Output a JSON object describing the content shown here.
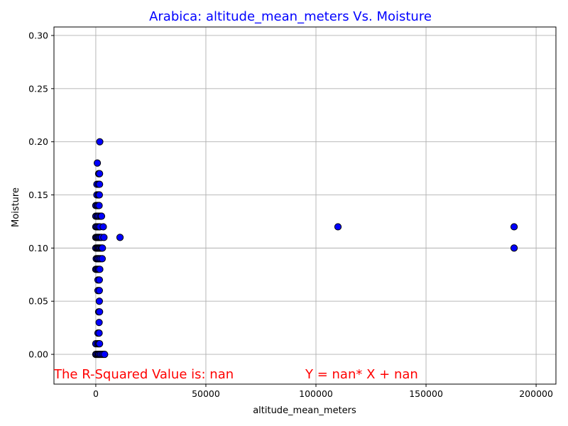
{
  "chart_data": {
    "type": "scatter",
    "title": "Arabica: altitude_mean_meters Vs. Moisture",
    "title_color": "#0000ff",
    "xlabel": "altitude_mean_meters",
    "ylabel": "Moisture",
    "xlim": [
      -19000,
      209000
    ],
    "ylim": [
      -0.028,
      0.308
    ],
    "xticks": [
      0,
      50000,
      100000,
      150000,
      200000
    ],
    "xtick_labels": [
      "0",
      "50000",
      "100000",
      "150000",
      "200000"
    ],
    "yticks": [
      0.0,
      0.05,
      0.1,
      0.15,
      0.2,
      0.25,
      0.3
    ],
    "ytick_labels": [
      "0.00",
      "0.05",
      "0.10",
      "0.15",
      "0.20",
      "0.25",
      "0.30"
    ],
    "grid": true,
    "marker_color": "#0000ff",
    "marker_edge_color": "#000000",
    "points": [
      {
        "x": 0,
        "y": 0.0
      },
      {
        "x": 400,
        "y": 0.0
      },
      {
        "x": 900,
        "y": 0.0
      },
      {
        "x": 1300,
        "y": 0.0
      },
      {
        "x": 1700,
        "y": 0.0
      },
      {
        "x": 2200,
        "y": 0.0
      },
      {
        "x": 2800,
        "y": 0.0
      },
      {
        "x": 3400,
        "y": 0.0
      },
      {
        "x": 4000,
        "y": 0.0
      },
      {
        "x": 0,
        "y": 0.01
      },
      {
        "x": 800,
        "y": 0.01
      },
      {
        "x": 1300,
        "y": 0.01
      },
      {
        "x": 1700,
        "y": 0.01
      },
      {
        "x": 1000,
        "y": 0.02
      },
      {
        "x": 1500,
        "y": 0.02
      },
      {
        "x": 1500,
        "y": 0.03
      },
      {
        "x": 1300,
        "y": 0.04
      },
      {
        "x": 1700,
        "y": 0.04
      },
      {
        "x": 1600,
        "y": 0.05
      },
      {
        "x": 1000,
        "y": 0.06
      },
      {
        "x": 1600,
        "y": 0.06
      },
      {
        "x": 1000,
        "y": 0.07
      },
      {
        "x": 1600,
        "y": 0.07
      },
      {
        "x": 0,
        "y": 0.08
      },
      {
        "x": 400,
        "y": 0.08
      },
      {
        "x": 900,
        "y": 0.08
      },
      {
        "x": 1300,
        "y": 0.08
      },
      {
        "x": 1800,
        "y": 0.08
      },
      {
        "x": 200,
        "y": 0.09
      },
      {
        "x": 700,
        "y": 0.09
      },
      {
        "x": 1100,
        "y": 0.09
      },
      {
        "x": 1600,
        "y": 0.09
      },
      {
        "x": 2200,
        "y": 0.09
      },
      {
        "x": 2900,
        "y": 0.09
      },
      {
        "x": 0,
        "y": 0.1
      },
      {
        "x": 500,
        "y": 0.1
      },
      {
        "x": 900,
        "y": 0.1
      },
      {
        "x": 1300,
        "y": 0.1
      },
      {
        "x": 1700,
        "y": 0.1
      },
      {
        "x": 2100,
        "y": 0.1
      },
      {
        "x": 2600,
        "y": 0.1
      },
      {
        "x": 3000,
        "y": 0.1
      },
      {
        "x": 0,
        "y": 0.11
      },
      {
        "x": 400,
        "y": 0.11
      },
      {
        "x": 800,
        "y": 0.11
      },
      {
        "x": 1200,
        "y": 0.11
      },
      {
        "x": 1600,
        "y": 0.11
      },
      {
        "x": 2100,
        "y": 0.11
      },
      {
        "x": 2600,
        "y": 0.11
      },
      {
        "x": 3700,
        "y": 0.11
      },
      {
        "x": 11000,
        "y": 0.11
      },
      {
        "x": 0,
        "y": 0.12
      },
      {
        "x": 400,
        "y": 0.12
      },
      {
        "x": 900,
        "y": 0.12
      },
      {
        "x": 1400,
        "y": 0.12
      },
      {
        "x": 1900,
        "y": 0.12
      },
      {
        "x": 3400,
        "y": 0.12
      },
      {
        "x": 0,
        "y": 0.13
      },
      {
        "x": 500,
        "y": 0.13
      },
      {
        "x": 1000,
        "y": 0.13
      },
      {
        "x": 1500,
        "y": 0.13
      },
      {
        "x": 2200,
        "y": 0.13
      },
      {
        "x": 2600,
        "y": 0.13
      },
      {
        "x": 0,
        "y": 0.14
      },
      {
        "x": 500,
        "y": 0.14
      },
      {
        "x": 1000,
        "y": 0.14
      },
      {
        "x": 1500,
        "y": 0.14
      },
      {
        "x": 500,
        "y": 0.15
      },
      {
        "x": 1200,
        "y": 0.15
      },
      {
        "x": 1600,
        "y": 0.15
      },
      {
        "x": 500,
        "y": 0.16
      },
      {
        "x": 1200,
        "y": 0.16
      },
      {
        "x": 1700,
        "y": 0.16
      },
      {
        "x": 1300,
        "y": 0.17
      },
      {
        "x": 1700,
        "y": 0.17
      },
      {
        "x": 700,
        "y": 0.18
      },
      {
        "x": 1800,
        "y": 0.2
      },
      {
        "x": 110000,
        "y": 0.12
      },
      {
        "x": 190000,
        "y": 0.12
      },
      {
        "x": 190000,
        "y": 0.1
      }
    ],
    "annotations": [
      {
        "text": "The R-Squared Value is: nan",
        "color": "#ff0000"
      },
      {
        "text": "Y = nan* X + nan",
        "color": "#ff0000"
      }
    ]
  }
}
